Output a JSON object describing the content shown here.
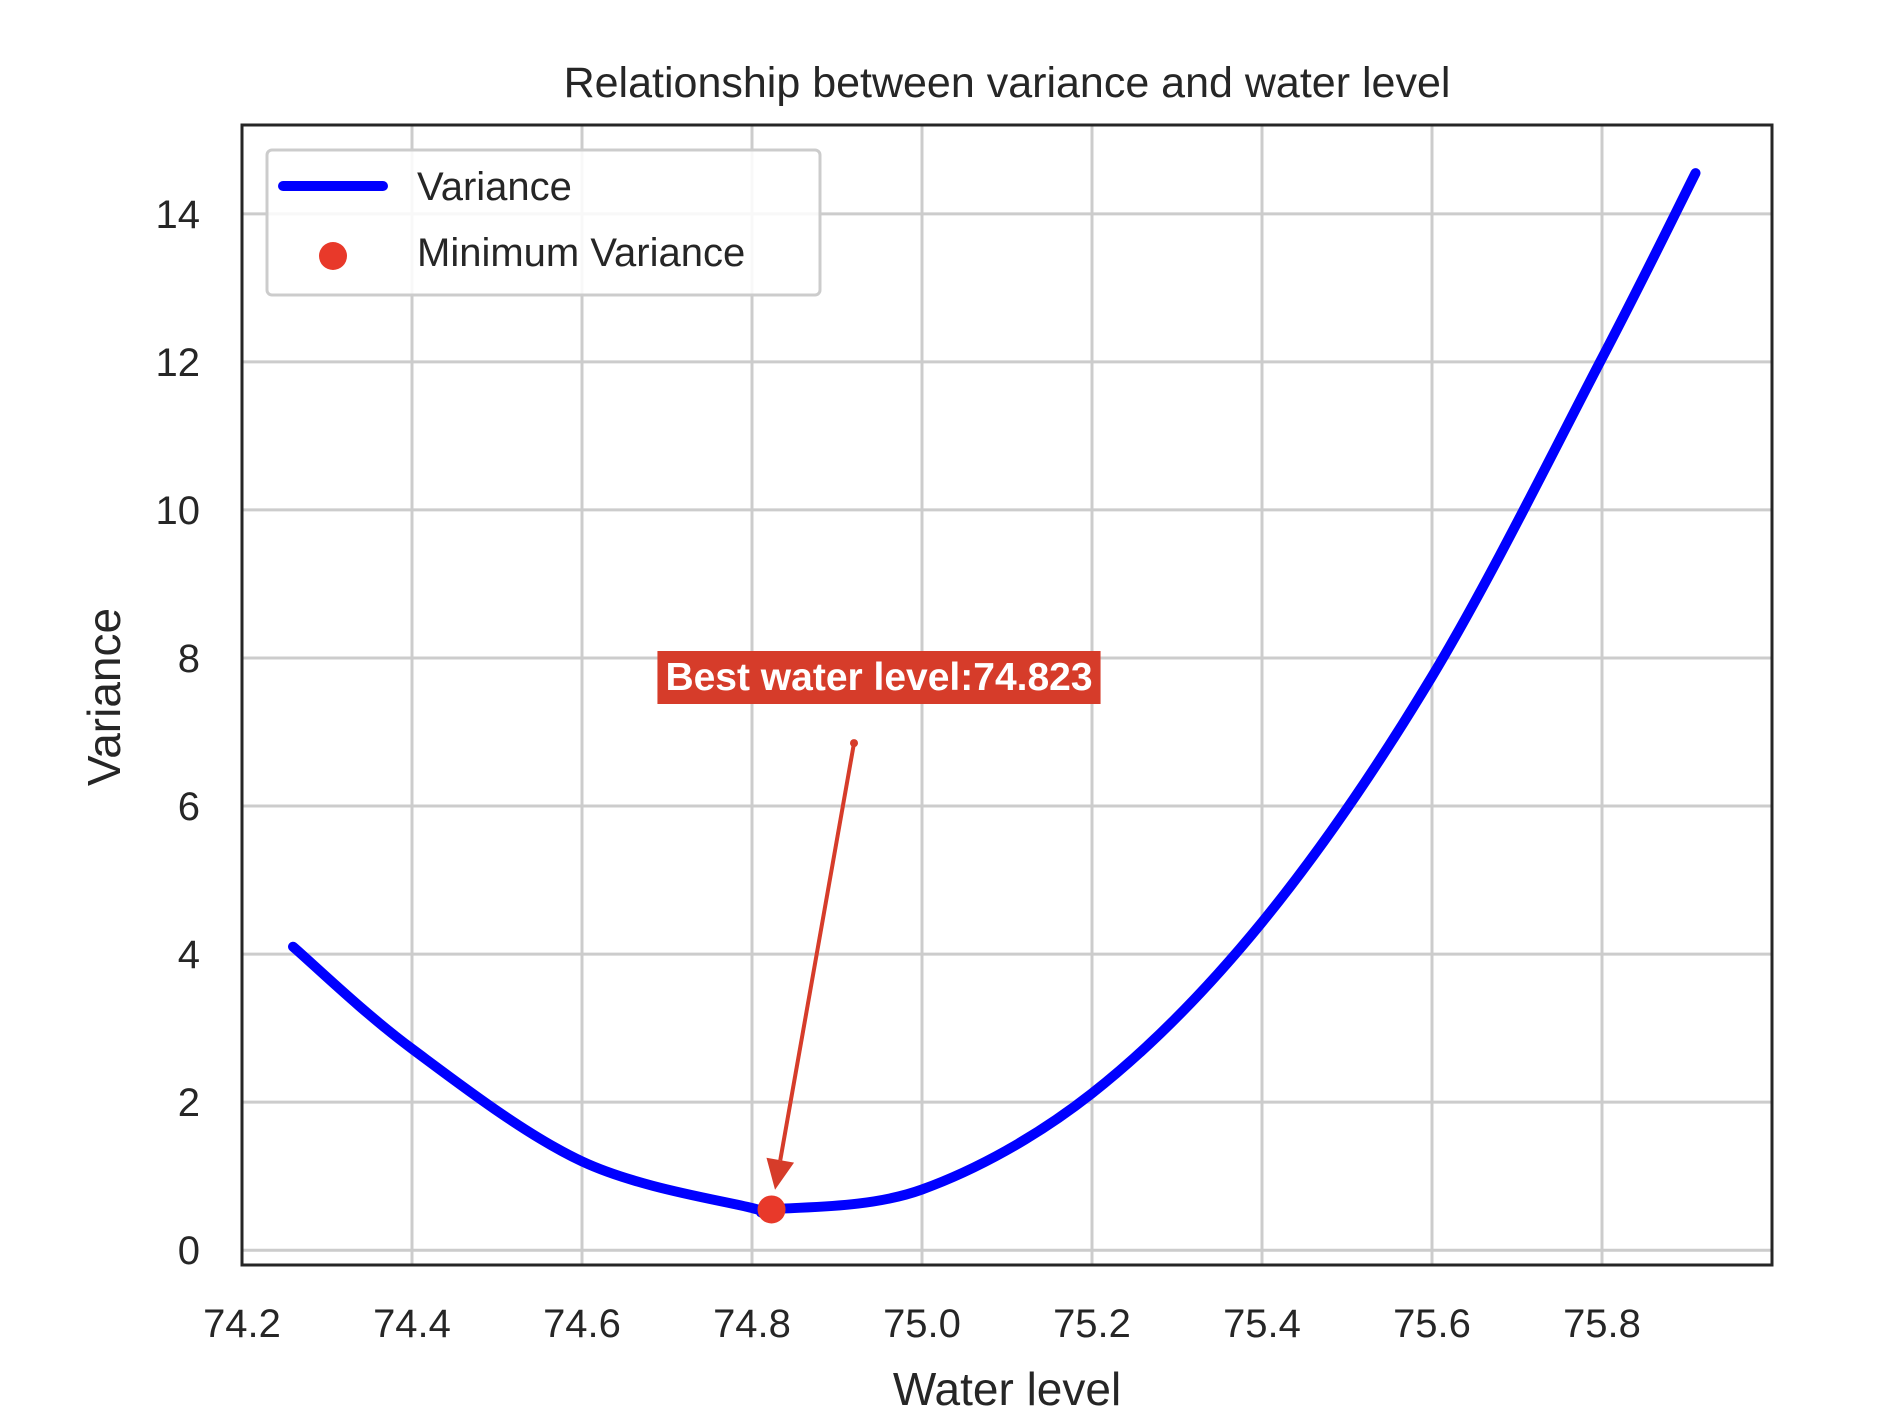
{
  "chart_data": {
    "type": "line",
    "title": "Relationship between variance and water level",
    "xlabel": "Water level",
    "ylabel": "Variance",
    "xlim": [
      74.2,
      76.0
    ],
    "ylim": [
      -0.2,
      15.2
    ],
    "xticks": [
      74.2,
      74.4,
      74.6,
      74.8,
      75.0,
      75.2,
      75.4,
      75.6,
      75.8
    ],
    "xtick_labels": [
      "74.2",
      "74.4",
      "74.6",
      "74.8",
      "75.0",
      "75.2",
      "75.4",
      "75.6",
      "75.8"
    ],
    "yticks": [
      0,
      2,
      4,
      6,
      8,
      10,
      12,
      14
    ],
    "ytick_labels": [
      "0",
      "2",
      "4",
      "6",
      "8",
      "10",
      "12",
      "14"
    ],
    "grid": true,
    "legend_position": "top-left",
    "series": [
      {
        "name": "Variance",
        "color": "#0000ff",
        "x": [
          74.26,
          74.4,
          74.6,
          74.8,
          74.823,
          75.0,
          75.2,
          75.4,
          75.6,
          75.8,
          75.91
        ],
        "y": [
          4.1,
          2.72,
          1.2,
          0.57,
          0.55,
          0.82,
          2.12,
          4.43,
          7.75,
          12.05,
          14.55
        ]
      },
      {
        "name": "Minimum Variance",
        "type": "scatter",
        "color": "#e8392a",
        "x": [
          74.823
        ],
        "y": [
          0.55
        ]
      }
    ],
    "annotation": {
      "text": "Best water level:74.823",
      "color": "#d63c2a",
      "point": {
        "x": 74.823,
        "y": 0.55
      },
      "text_anchor": {
        "x": 74.92,
        "y": 6.85
      }
    }
  }
}
